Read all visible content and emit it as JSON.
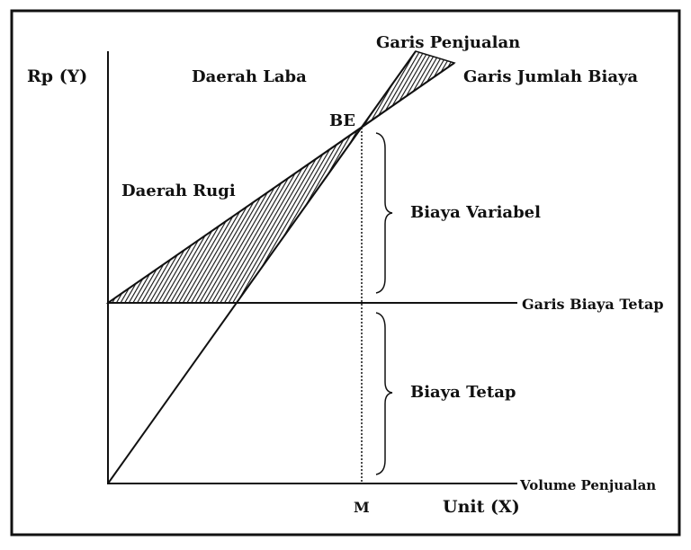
{
  "labels": {
    "y_axis": "Rp (Y)",
    "x_axis": "Unit (X)",
    "profit_area": "Daerah Laba",
    "loss_area": "Daerah Rugi",
    "sales_line": "Garis Penjualan",
    "total_cost_line": "Garis Jumlah Biaya",
    "break_even": "BE",
    "variable_cost": "Biaya Variabel",
    "fixed_cost_line": "Garis Biaya Tetap",
    "fixed_cost": "Biaya Tetap",
    "sales_volume": "Volume Penjualan",
    "break_even_quantity": "M"
  },
  "colors": {
    "ink": "#111111",
    "background": "#ffffff"
  }
}
